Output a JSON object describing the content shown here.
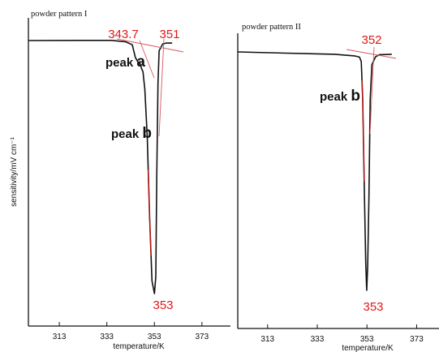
{
  "chart_data": [
    {
      "type": "line",
      "title": "powder pattern I",
      "xlabel": "temperature/K",
      "ylabel": "sensitivity/mV cm⁻¹",
      "xticks": [
        313,
        333,
        353,
        373
      ],
      "xlim": [
        300,
        385
      ],
      "ylim": [
        -300,
        10
      ],
      "grid": false,
      "series": [
        {
          "x": [
            300,
            320,
            335,
            341,
            343.7,
            345.0,
            346.2,
            347.0,
            347.6,
            348.2,
            349.0,
            350.0,
            351.0,
            352.0,
            353.0,
            353.6,
            354.0,
            354.5,
            355.0,
            356.5,
            358,
            360.5
          ],
          "values": [
            0,
            0.2,
            0.2,
            -1.5,
            -5,
            -20,
            -26,
            -27,
            -33,
            -37,
            -58,
            -115,
            -210,
            -285,
            -300,
            -280,
            -160,
            -50,
            -12,
            -4,
            -3,
            -3
          ]
        }
      ],
      "annotations": [
        {
          "text": "343.7",
          "x": 343.7,
          "kind": "onset"
        },
        {
          "text": "351",
          "x": 351,
          "kind": "onset"
        },
        {
          "text": "353",
          "x": 353,
          "kind": "peak"
        },
        {
          "text": "peak",
          "big": "a",
          "x": 345.5
        },
        {
          "text": "peak",
          "big": "b",
          "x": 351
        }
      ]
    },
    {
      "type": "line",
      "title": "powder pattern II",
      "xlabel": "temperature/K",
      "ylabel": "",
      "xticks": [
        313,
        333,
        353,
        373
      ],
      "xlim": [
        301,
        382
      ],
      "ylim": [
        -300,
        10
      ],
      "grid": false,
      "series": [
        {
          "x": [
            301,
            320,
            340,
            348,
            350,
            350.7,
            351.3,
            352.0,
            352.5,
            352.9,
            353.3,
            353.8,
            354.3,
            355.0,
            356.5,
            358,
            363
          ],
          "values": [
            0,
            -1.5,
            -3,
            -5,
            -6.5,
            -12,
            -60,
            -180,
            -265,
            -300,
            -270,
            -180,
            -60,
            -16,
            -6,
            -3.5,
            -3
          ]
        }
      ],
      "annotations": [
        {
          "text": "352",
          "x": 352,
          "kind": "onset"
        },
        {
          "text": "353",
          "x": 353,
          "kind": "peak"
        },
        {
          "text": "peak",
          "big": "b",
          "x": 352
        }
      ]
    }
  ]
}
